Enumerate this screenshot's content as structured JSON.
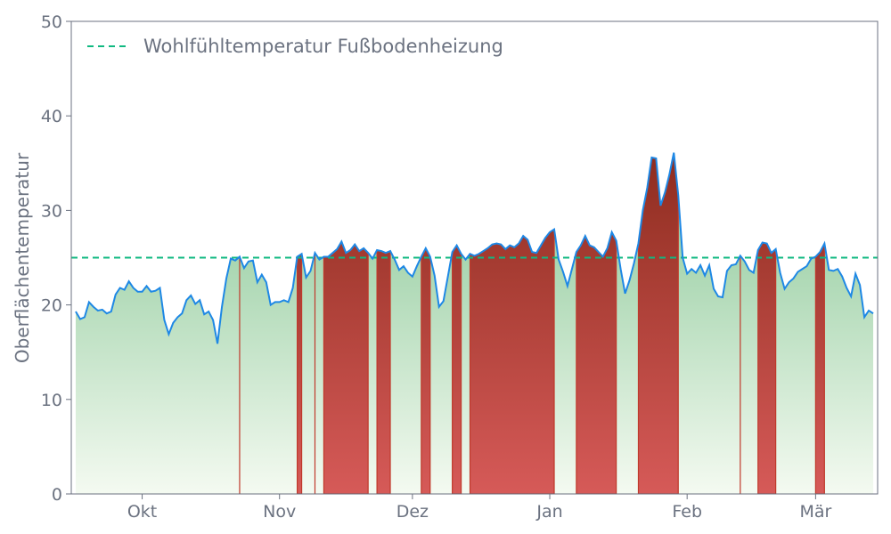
{
  "chart_data": {
    "type": "area",
    "xlabel": "",
    "ylabel": "Oberflächentemperatur",
    "ylim": [
      0,
      50
    ],
    "yticks": [
      0,
      10,
      20,
      30,
      40,
      50
    ],
    "xlim": [
      "2023-09-15",
      "2024-03-15"
    ],
    "xticks": [
      {
        "date": "2023-10-01",
        "label": "Okt"
      },
      {
        "date": "2023-11-01",
        "label": "Nov"
      },
      {
        "date": "2023-12-01",
        "label": "Dez"
      },
      {
        "date": "2024-01-01",
        "label": "Jan"
      },
      {
        "date": "2024-02-01",
        "label": "Feb"
      },
      {
        "date": "2024-03-01",
        "label": "Mär"
      }
    ],
    "threshold": {
      "name": "Wohlfühltemperatur Fußbodenheizung",
      "value": 25,
      "color": "#10b981"
    },
    "legend_position": "top-left",
    "grid": false,
    "colors": {
      "line": "#1e88e5",
      "below_top": "#5cb270",
      "below_bottom": "#f4faf1",
      "above_top": "#8a2a1c",
      "above_bottom": "#d65a58",
      "above_edge": "#c0392b"
    },
    "series": [
      {
        "start_date": "2023-09-16",
        "step_days": 1,
        "values": [
          19.3,
          18.5,
          18.7,
          20.3,
          19.8,
          19.4,
          19.5,
          19.1,
          19.3,
          21.1,
          21.8,
          21.6,
          22.5,
          21.8,
          21.4,
          21.4,
          22.0,
          21.4,
          21.5,
          21.8,
          18.4,
          16.9,
          18.1,
          18.7,
          19.1,
          20.5,
          21.0,
          20.1,
          20.5,
          19.0,
          19.3,
          18.4,
          15.9,
          19.8,
          22.8,
          24.9,
          24.7,
          25.1,
          23.9,
          24.6,
          24.7,
          22.4,
          23.2,
          22.4,
          20.0,
          20.3,
          20.3,
          20.5,
          20.3,
          21.8,
          25.1,
          25.4,
          22.9,
          23.6,
          25.5,
          24.8,
          25.1,
          25.1,
          25.5,
          25.9,
          26.7,
          25.5,
          25.8,
          26.4,
          25.7,
          26.0,
          25.5,
          24.9,
          25.8,
          25.7,
          25.5,
          25.7,
          24.8,
          23.7,
          24.1,
          23.4,
          23.0,
          24.1,
          25.1,
          26.0,
          25.1,
          23.1,
          19.8,
          20.4,
          23.0,
          25.6,
          26.3,
          25.4,
          24.8,
          25.4,
          25.2,
          25.4,
          25.7,
          26.0,
          26.4,
          26.5,
          26.4,
          25.9,
          26.3,
          26.1,
          26.5,
          27.3,
          26.9,
          25.6,
          25.5,
          26.3,
          27.1,
          27.7,
          28.0,
          24.8,
          23.5,
          22.0,
          23.8,
          25.6,
          26.3,
          27.3,
          26.3,
          26.1,
          25.6,
          25.1,
          26.0,
          27.7,
          26.8,
          23.8,
          21.2,
          22.6,
          24.4,
          26.5,
          30.0,
          32.4,
          35.6,
          35.5,
          30.5,
          31.9,
          33.8,
          36.1,
          31.6,
          25.0,
          23.3,
          23.8,
          23.4,
          24.2,
          23.1,
          24.2,
          21.7,
          20.9,
          20.8,
          23.6,
          24.2,
          24.3,
          25.2,
          24.6,
          23.7,
          23.4,
          25.8,
          26.6,
          26.5,
          25.5,
          25.9,
          23.4,
          21.7,
          22.4,
          22.8,
          23.5,
          23.8,
          24.1,
          24.9,
          25.1,
          25.6,
          26.5,
          23.7,
          23.6,
          23.8,
          23.0,
          21.8,
          20.9,
          23.3,
          22.1,
          18.7,
          19.4,
          19.1
        ]
      }
    ]
  }
}
